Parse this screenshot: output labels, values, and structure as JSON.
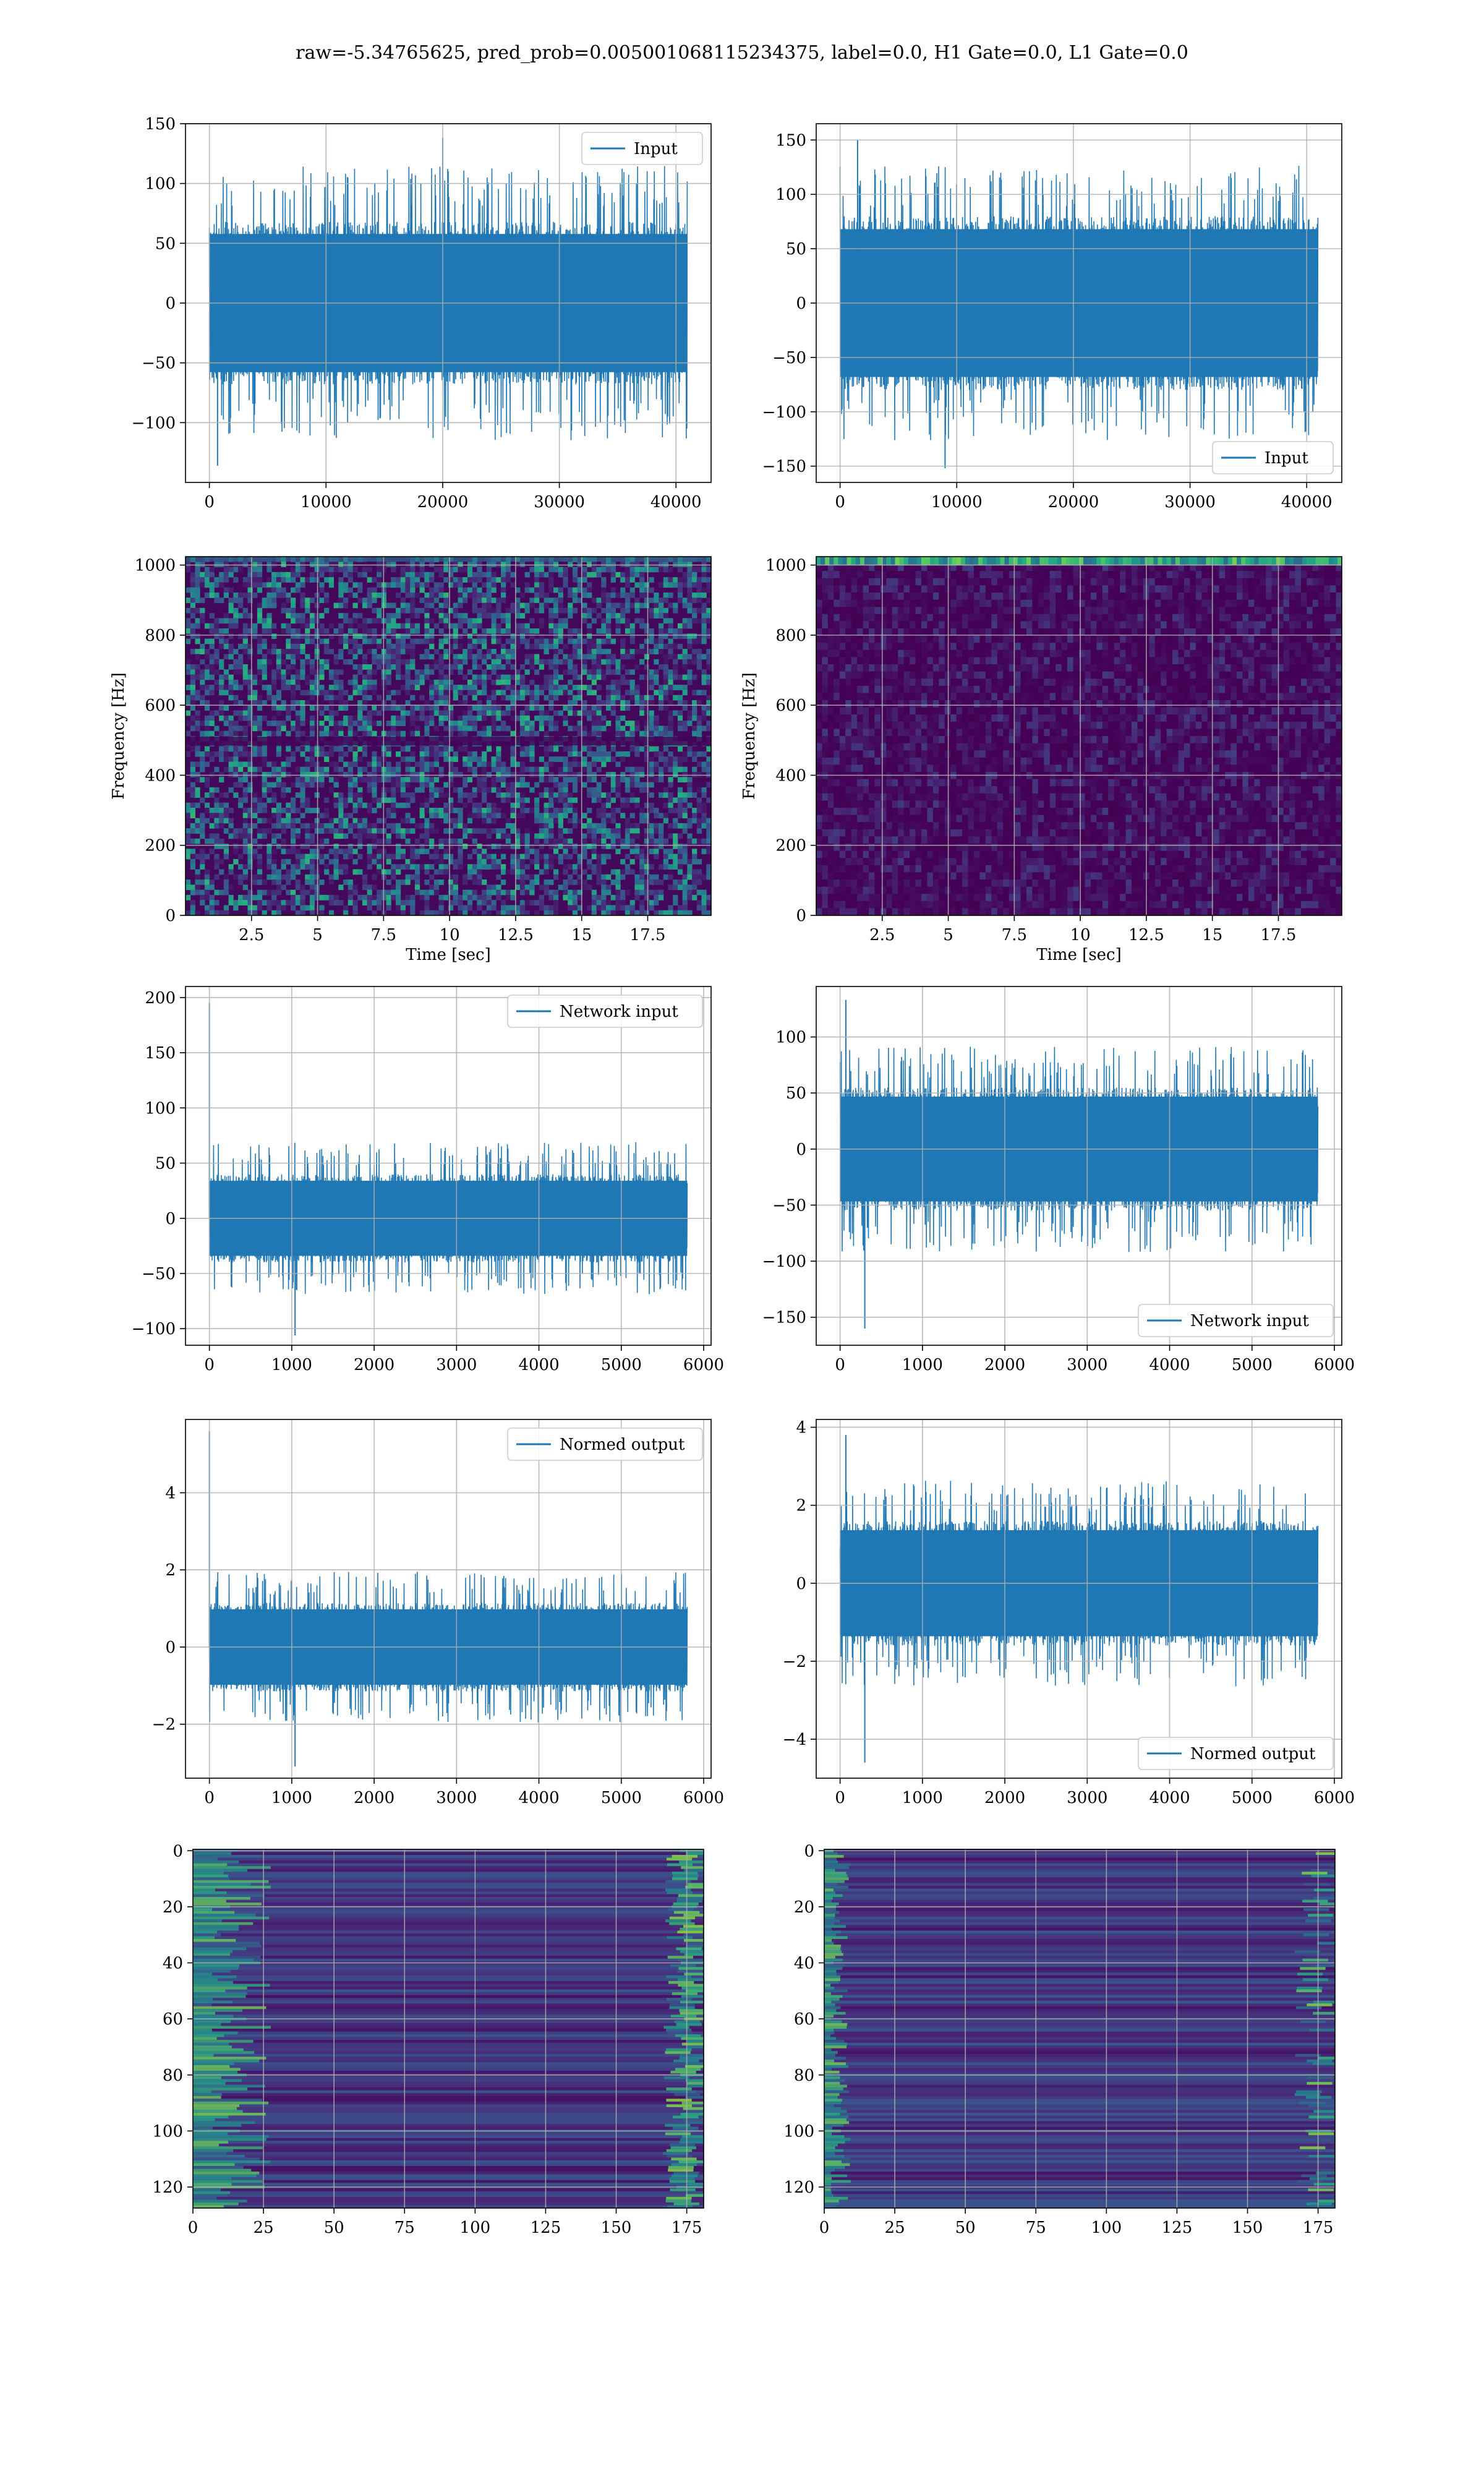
{
  "title": "raw=-5.34765625, pred_prob=0.005001068115234375, label=0.0, H1 Gate=0.0, L1 Gate=0.0",
  "colors": {
    "line": "#1f77b4",
    "grid": "#b0b0b0"
  },
  "chart_data": [
    {
      "id": "input-h1",
      "type": "line",
      "legend": "Input",
      "legend_loc": "upper right",
      "x_range": [
        0,
        40960
      ],
      "xlim": [
        -2048,
        43008
      ],
      "ylim": [
        -150,
        150
      ],
      "xticks": [
        0,
        10000,
        20000,
        30000,
        40000
      ],
      "yticks": [
        -100,
        -50,
        0,
        50,
        100,
        150
      ],
      "band": {
        "outer": 100,
        "inner": 68
      },
      "spikes": [
        {
          "x": 20000,
          "y": 138
        },
        {
          "x": 700,
          "y": -136
        }
      ]
    },
    {
      "id": "input-l1",
      "type": "line",
      "legend": "Input",
      "legend_loc": "lower right",
      "x_range": [
        0,
        40960
      ],
      "xlim": [
        -2048,
        43008
      ],
      "ylim": [
        -165,
        165
      ],
      "xticks": [
        0,
        10000,
        20000,
        30000,
        40000
      ],
      "yticks": [
        -150,
        -100,
        -50,
        0,
        50,
        100,
        150
      ],
      "band": {
        "outer": 110,
        "inner": 80
      },
      "spikes": [
        {
          "x": 1500,
          "y": 150
        },
        {
          "x": 9000,
          "y": -152
        }
      ]
    },
    {
      "id": "spec-h1",
      "type": "heatmap",
      "style": "speckle",
      "xlabel": "Time [sec]",
      "ylabel": "Frequency [Hz]",
      "xlim": [
        0,
        19.9
      ],
      "ylim": [
        0,
        1024
      ],
      "xticks": [
        2.5,
        5.0,
        7.5,
        10.0,
        12.5,
        15.0,
        17.5
      ],
      "yticks": [
        0,
        200,
        400,
        600,
        800,
        1000
      ]
    },
    {
      "id": "spec-l1",
      "type": "heatmap",
      "style": "dark",
      "xlabel": "Time [sec]",
      "ylabel": "Frequency [Hz]",
      "xlim": [
        0,
        19.9
      ],
      "ylim": [
        0,
        1024
      ],
      "xticks": [
        2.5,
        5.0,
        7.5,
        10.0,
        12.5,
        15.0,
        17.5
      ],
      "yticks": [
        0,
        200,
        400,
        600,
        800,
        1000
      ]
    },
    {
      "id": "net-h1",
      "type": "line",
      "legend": "Network input",
      "legend_loc": "upper right",
      "x_range": [
        0,
        5800
      ],
      "xlim": [
        -290,
        6090
      ],
      "ylim": [
        -115,
        210
      ],
      "xticks": [
        0,
        1000,
        2000,
        3000,
        4000,
        5000,
        6000
      ],
      "yticks": [
        -100,
        -50,
        0,
        50,
        100,
        150,
        200
      ],
      "band": {
        "outer": 60,
        "inner": 40
      },
      "spikes": [
        {
          "x": 0,
          "y": 195
        },
        {
          "x": 1040,
          "y": -106
        }
      ]
    },
    {
      "id": "net-l1",
      "type": "line",
      "legend": "Network input",
      "legend_loc": "lower right",
      "x_range": [
        0,
        5800
      ],
      "xlim": [
        -290,
        6090
      ],
      "ylim": [
        -175,
        145
      ],
      "xticks": [
        0,
        1000,
        2000,
        3000,
        4000,
        5000,
        6000
      ],
      "yticks": [
        -150,
        -100,
        -50,
        0,
        50,
        100
      ],
      "band": {
        "outer": 80,
        "inner": 55
      },
      "spikes": [
        {
          "x": 70,
          "y": 133
        },
        {
          "x": 300,
          "y": -160
        }
      ]
    },
    {
      "id": "norm-h1",
      "type": "line",
      "legend": "Normed output",
      "legend_loc": "upper right",
      "x_range": [
        0,
        5800
      ],
      "xlim": [
        -290,
        6090
      ],
      "ylim": [
        -3.4,
        5.9
      ],
      "xticks": [
        0,
        1000,
        2000,
        3000,
        4000,
        5000,
        6000
      ],
      "yticks": [
        -2,
        0,
        2,
        4
      ],
      "band": {
        "outer": 1.7,
        "inner": 1.15
      },
      "spikes": [
        {
          "x": 0,
          "y": 5.6
        },
        {
          "x": 1040,
          "y": -3.1
        }
      ]
    },
    {
      "id": "norm-l1",
      "type": "line",
      "legend": "Normed output",
      "legend_loc": "lower right",
      "x_range": [
        0,
        5800
      ],
      "xlim": [
        -290,
        6090
      ],
      "ylim": [
        -5.0,
        4.2
      ],
      "xticks": [
        0,
        1000,
        2000,
        3000,
        4000,
        5000,
        6000
      ],
      "yticks": [
        -4,
        -2,
        0,
        2,
        4
      ],
      "band": {
        "outer": 2.3,
        "inner": 1.6
      },
      "spikes": [
        {
          "x": 70,
          "y": 3.8
        },
        {
          "x": 300,
          "y": -4.6
        }
      ]
    },
    {
      "id": "feat-h1",
      "type": "heatmap",
      "style": "features-h1",
      "xlim": [
        0,
        181
      ],
      "ylim": [
        127.5,
        -0.5
      ],
      "xticks": [
        0,
        25,
        50,
        75,
        100,
        125,
        150,
        175
      ],
      "yticks": [
        0,
        20,
        40,
        60,
        80,
        100,
        120
      ]
    },
    {
      "id": "feat-l1",
      "type": "heatmap",
      "style": "features-l1",
      "xlim": [
        0,
        181
      ],
      "ylim": [
        127.5,
        -0.5
      ],
      "xticks": [
        0,
        25,
        50,
        75,
        100,
        125,
        150,
        175
      ],
      "yticks": [
        0,
        20,
        40,
        60,
        80,
        100,
        120
      ]
    }
  ]
}
